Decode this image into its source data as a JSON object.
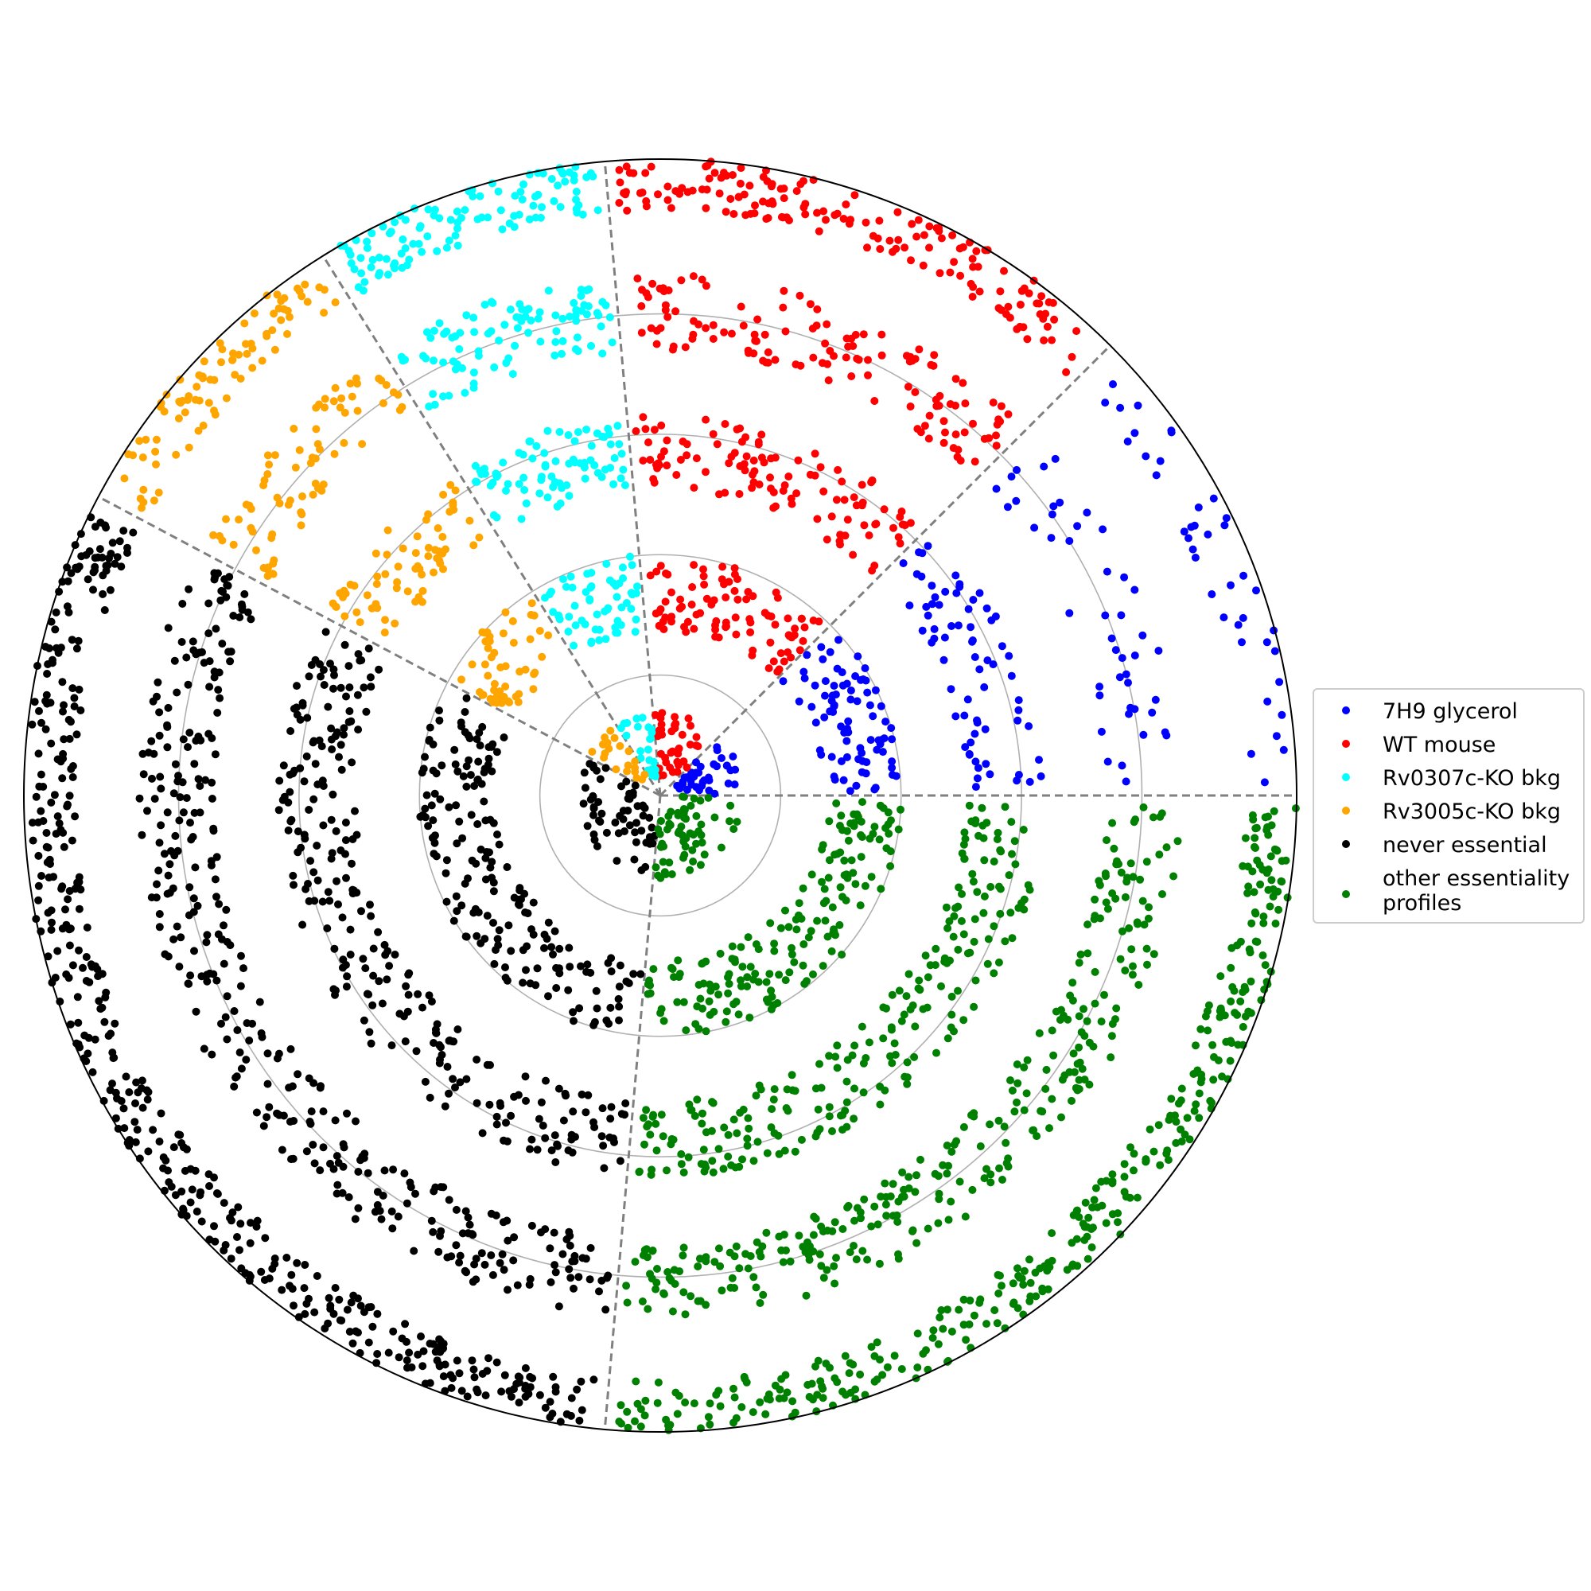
{
  "chart_data": {
    "type": "scatter",
    "projection": "polar",
    "title": "",
    "grid": true,
    "radial_grid_circles": 4,
    "theta_labels_shown": false,
    "radius_labels_shown": false,
    "legend_position": "right",
    "sector_boundaries_deg": [
      0,
      45,
      95,
      122,
      152,
      265
    ],
    "rings": [
      {
        "level": 0,
        "radius_range": [
          0.03,
          0.13
        ]
      },
      {
        "level": 1,
        "radius_range": [
          0.26,
          0.38
        ]
      },
      {
        "level": 2,
        "radius_range": [
          0.48,
          0.6
        ]
      },
      {
        "level": 3,
        "radius_range": [
          0.7,
          0.82
        ]
      },
      {
        "level": 4,
        "radius_range": [
          0.92,
          1.0
        ]
      }
    ],
    "series": [
      {
        "name": "7H9 glycerol",
        "color": "#0000ff",
        "theta_range_deg": [
          0,
          45
        ],
        "points_per_ring": [
          40,
          80,
          70,
          45,
          40
        ]
      },
      {
        "name": "WT mouse",
        "color": "#ff0000",
        "theta_range_deg": [
          45,
          95
        ],
        "points_per_ring": [
          40,
          90,
          110,
          130,
          160
        ]
      },
      {
        "name": "Rv0307c-KO bkg",
        "color": "#00ffff",
        "theta_range_deg": [
          95,
          122
        ],
        "points_per_ring": [
          25,
          60,
          80,
          95,
          110
        ]
      },
      {
        "name": "Rv3005c-KO bkg",
        "color": "#ffa500",
        "theta_range_deg": [
          122,
          152
        ],
        "points_per_ring": [
          20,
          50,
          65,
          75,
          85
        ]
      },
      {
        "name": "never essential",
        "color": "#000000",
        "theta_range_deg": [
          152,
          265
        ],
        "points_per_ring": [
          60,
          180,
          250,
          330,
          420
        ]
      },
      {
        "name": "other essentiality\nprofiles",
        "color": "#008000",
        "theta_range_deg": [
          265,
          360
        ],
        "points_per_ring": [
          60,
          170,
          230,
          290,
          340
        ]
      }
    ]
  },
  "legend": {
    "items": [
      {
        "label": "7H9 glycerol",
        "color": "#0000ff"
      },
      {
        "label": "WT mouse",
        "color": "#ff0000"
      },
      {
        "label": "Rv0307c-KO bkg",
        "color": "#00ffff"
      },
      {
        "label": "Rv3005c-KO bkg",
        "color": "#ffa500"
      },
      {
        "label": "never essential",
        "color": "#000000"
      },
      {
        "label_lines": [
          "other essentiality",
          "profiles"
        ],
        "color": "#008000"
      }
    ]
  }
}
